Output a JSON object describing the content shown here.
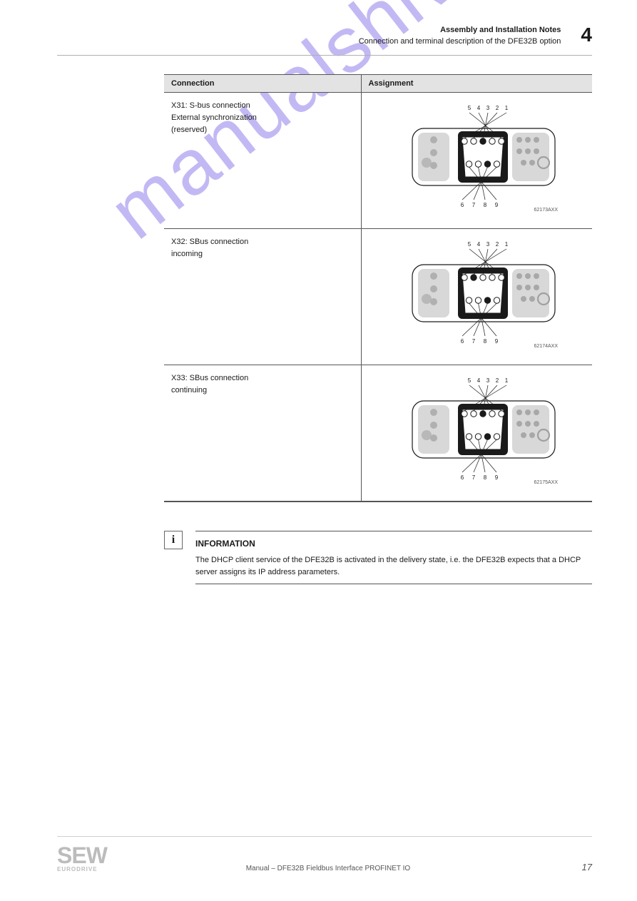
{
  "header": {
    "line1": "Assembly and Installation Notes",
    "line2": "Connection and terminal description of the DFE32B option",
    "chapter": "4"
  },
  "table": {
    "col1": "Connection",
    "col2": "Assignment",
    "rows": [
      {
        "title": "X31: S-bus connection\nExternal synchronization\n(reserved)",
        "figure": {
          "labels_top": [
            "5",
            "4",
            "3",
            "2",
            "1"
          ],
          "labels_bot": [
            "6",
            "7",
            "8",
            "9"
          ],
          "filled": [
            3,
            7
          ],
          "ref": "62173AXX"
        }
      },
      {
        "title": "X32: SBus connection\nincoming",
        "figure": {
          "labels_top": [
            "5",
            "4",
            "3",
            "2",
            "1"
          ],
          "labels_bot": [
            "6",
            "7",
            "8",
            "9"
          ],
          "filled": [
            2,
            7
          ],
          "ref": "62174AXX"
        }
      },
      {
        "title": "X33: SBus connection\ncontinuing",
        "figure": {
          "labels_top": [
            "5",
            "4",
            "3",
            "2",
            "1"
          ],
          "labels_bot": [
            "6",
            "7",
            "8",
            "9"
          ],
          "filled": [
            3,
            7
          ],
          "ref": "62175AXX"
        }
      }
    ]
  },
  "note": {
    "title": "INFORMATION",
    "body": "The DHCP client service of the DFE32B is activated in the delivery state, i.e. the DFE32B expects that a DHCP server assigns its IP address parameters."
  },
  "footer": {
    "logo_big": "SEW",
    "logo_small": "EURODRIVE",
    "center": "Manual – DFE32B Fieldbus Interface PROFINET IO",
    "page": "17"
  },
  "watermark": "manualshive.com",
  "colors": {
    "header_rule": "#b0b0b0",
    "table_border": "#555555",
    "table_head_bg": "#e3e3e3",
    "watermark": "rgba(120,100,230,0.45)",
    "logo_grey": "#bcbcbc",
    "svg_grey": "#c0c0c0",
    "svg_black": "#1a1a1a"
  }
}
